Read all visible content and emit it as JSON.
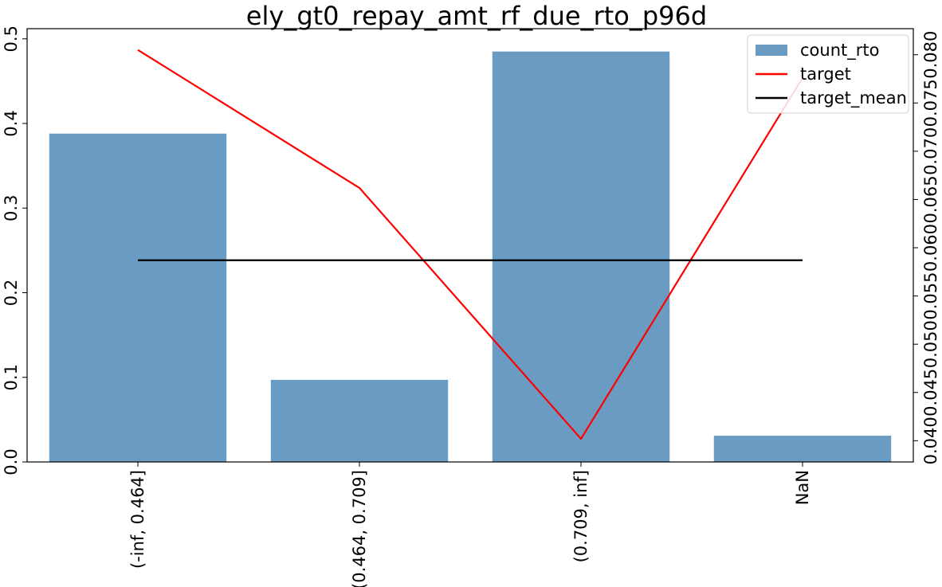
{
  "chart_data": {
    "type": "bar",
    "title": "ely_gt0_repay_amt_rf_due_rto_p96d",
    "xlabel": "",
    "ylabel": "",
    "y2label": "",
    "categories": [
      "(-inf, 0.464]",
      "(0.464, 0.709]",
      "(0.709, inf]",
      "NaN"
    ],
    "series": [
      {
        "name": "count_rto",
        "kind": "bar",
        "axis": "left",
        "color": "#6a9bc3",
        "values": [
          0.388,
          0.097,
          0.485,
          0.031
        ]
      },
      {
        "name": "target",
        "kind": "line",
        "axis": "right",
        "color": "#ff0000",
        "values": [
          0.0805,
          0.0662,
          0.0402,
          0.0776
        ]
      },
      {
        "name": "target_mean",
        "kind": "line",
        "axis": "right",
        "color": "#000000",
        "values": [
          0.0587,
          0.0587,
          0.0587,
          0.0587
        ]
      }
    ],
    "ylim": [
      0,
      0.512
    ],
    "y2lim": [
      0.0378,
      0.0827
    ],
    "yticks": [
      "0.0",
      "0.1",
      "0.2",
      "0.3",
      "0.4",
      "0.5"
    ],
    "y2ticks": [
      "0.040",
      "0.045",
      "0.050",
      "0.055",
      "0.060",
      "0.065",
      "0.070",
      "0.075",
      "0.080"
    ],
    "legend": "top-right",
    "grid": false
  }
}
